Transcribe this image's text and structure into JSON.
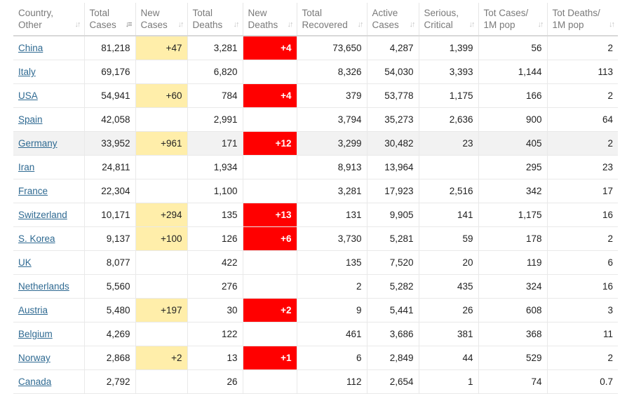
{
  "table": {
    "headers": [
      {
        "label": [
          "Country,",
          "Other"
        ],
        "sort": "both"
      },
      {
        "label": [
          "Total",
          "Cases"
        ],
        "sort": "desc-active"
      },
      {
        "label": [
          "New",
          "Cases"
        ],
        "sort": "both"
      },
      {
        "label": [
          "Total",
          "Deaths"
        ],
        "sort": "both"
      },
      {
        "label": [
          "New",
          "Deaths"
        ],
        "sort": "both"
      },
      {
        "label": [
          "Total",
          "Recovered"
        ],
        "sort": "both"
      },
      {
        "label": [
          "Active",
          "Cases"
        ],
        "sort": "both"
      },
      {
        "label": [
          "Serious,",
          "Critical"
        ],
        "sort": "both"
      },
      {
        "label": [
          "Tot Cases/",
          "1M pop"
        ],
        "sort": "both"
      },
      {
        "label": [
          "Tot Deaths/",
          "1M pop"
        ],
        "sort": "both"
      }
    ],
    "rows": [
      {
        "country": "China",
        "total_cases": "81,218",
        "new_cases": "+47",
        "total_deaths": "3,281",
        "new_deaths": "+4",
        "total_recovered": "73,650",
        "active_cases": "4,287",
        "serious_critical": "1,399",
        "tot_cases_1m": "56",
        "tot_deaths_1m": "2"
      },
      {
        "country": "Italy",
        "total_cases": "69,176",
        "new_cases": "",
        "total_deaths": "6,820",
        "new_deaths": "",
        "total_recovered": "8,326",
        "active_cases": "54,030",
        "serious_critical": "3,393",
        "tot_cases_1m": "1,144",
        "tot_deaths_1m": "113"
      },
      {
        "country": "USA",
        "total_cases": "54,941",
        "new_cases": "+60",
        "total_deaths": "784",
        "new_deaths": "+4",
        "total_recovered": "379",
        "active_cases": "53,778",
        "serious_critical": "1,175",
        "tot_cases_1m": "166",
        "tot_deaths_1m": "2"
      },
      {
        "country": "Spain",
        "total_cases": "42,058",
        "new_cases": "",
        "total_deaths": "2,991",
        "new_deaths": "",
        "total_recovered": "3,794",
        "active_cases": "35,273",
        "serious_critical": "2,636",
        "tot_cases_1m": "900",
        "tot_deaths_1m": "64"
      },
      {
        "country": "Germany",
        "total_cases": "33,952",
        "new_cases": "+961",
        "total_deaths": "171",
        "new_deaths": "+12",
        "total_recovered": "3,299",
        "active_cases": "30,482",
        "serious_critical": "23",
        "tot_cases_1m": "405",
        "tot_deaths_1m": "2",
        "highlight": true
      },
      {
        "country": "Iran",
        "total_cases": "24,811",
        "new_cases": "",
        "total_deaths": "1,934",
        "new_deaths": "",
        "total_recovered": "8,913",
        "active_cases": "13,964",
        "serious_critical": "",
        "tot_cases_1m": "295",
        "tot_deaths_1m": "23"
      },
      {
        "country": "France",
        "total_cases": "22,304",
        "new_cases": "",
        "total_deaths": "1,100",
        "new_deaths": "",
        "total_recovered": "3,281",
        "active_cases": "17,923",
        "serious_critical": "2,516",
        "tot_cases_1m": "342",
        "tot_deaths_1m": "17"
      },
      {
        "country": "Switzerland",
        "total_cases": "10,171",
        "new_cases": "+294",
        "total_deaths": "135",
        "new_deaths": "+13",
        "total_recovered": "131",
        "active_cases": "9,905",
        "serious_critical": "141",
        "tot_cases_1m": "1,175",
        "tot_deaths_1m": "16"
      },
      {
        "country": "S. Korea",
        "total_cases": "9,137",
        "new_cases": "+100",
        "total_deaths": "126",
        "new_deaths": "+6",
        "total_recovered": "3,730",
        "active_cases": "5,281",
        "serious_critical": "59",
        "tot_cases_1m": "178",
        "tot_deaths_1m": "2"
      },
      {
        "country": "UK",
        "total_cases": "8,077",
        "new_cases": "",
        "total_deaths": "422",
        "new_deaths": "",
        "total_recovered": "135",
        "active_cases": "7,520",
        "serious_critical": "20",
        "tot_cases_1m": "119",
        "tot_deaths_1m": "6"
      },
      {
        "country": "Netherlands",
        "total_cases": "5,560",
        "new_cases": "",
        "total_deaths": "276",
        "new_deaths": "",
        "total_recovered": "2",
        "active_cases": "5,282",
        "serious_critical": "435",
        "tot_cases_1m": "324",
        "tot_deaths_1m": "16"
      },
      {
        "country": "Austria",
        "total_cases": "5,480",
        "new_cases": "+197",
        "total_deaths": "30",
        "new_deaths": "+2",
        "total_recovered": "9",
        "active_cases": "5,441",
        "serious_critical": "26",
        "tot_cases_1m": "608",
        "tot_deaths_1m": "3"
      },
      {
        "country": "Belgium",
        "total_cases": "4,269",
        "new_cases": "",
        "total_deaths": "122",
        "new_deaths": "",
        "total_recovered": "461",
        "active_cases": "3,686",
        "serious_critical": "381",
        "tot_cases_1m": "368",
        "tot_deaths_1m": "11"
      },
      {
        "country": "Norway",
        "total_cases": "2,868",
        "new_cases": "+2",
        "total_deaths": "13",
        "new_deaths": "+1",
        "total_recovered": "6",
        "active_cases": "2,849",
        "serious_critical": "44",
        "tot_cases_1m": "529",
        "tot_deaths_1m": "2"
      },
      {
        "country": "Canada",
        "total_cases": "2,792",
        "new_cases": "",
        "total_deaths": "26",
        "new_deaths": "",
        "total_recovered": "112",
        "active_cases": "2,654",
        "serious_critical": "1",
        "tot_cases_1m": "74",
        "tot_deaths_1m": "0.7"
      }
    ]
  },
  "colors": {
    "new_cases_bg": "#ffeeaa",
    "new_deaths_bg": "#ff0000",
    "link": "#2f6a92",
    "row_highlight": "#f2f2f2"
  },
  "icons": {
    "sort_both": "sort-arrows-icon",
    "sort_desc_active": "sort-descending-icon"
  }
}
